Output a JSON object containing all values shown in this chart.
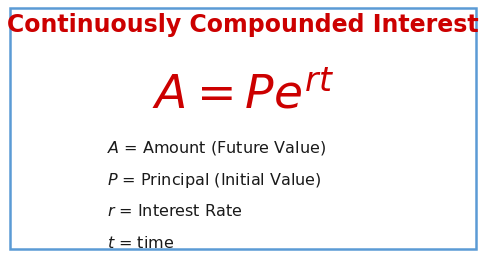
{
  "title": "Continuously Compounded Interest",
  "title_color": "#cc0000",
  "title_fontsize": 17,
  "formula_color": "#cc0000",
  "formula_fontsize": 34,
  "definition_lines": [
    "$A$ = Amount (Future Value)",
    "$P$ = Principal (Initial Value)",
    "$r$ = Interest Rate",
    "$t$ = time"
  ],
  "def_color": "#1a1a1a",
  "def_fontsize": 11.5,
  "background_color": "#ffffff",
  "border_color": "#5b9bd5",
  "border_linewidth": 1.8
}
